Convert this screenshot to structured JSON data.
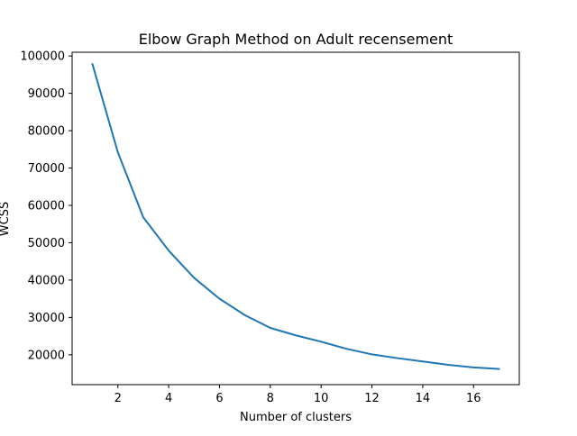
{
  "chart_data": {
    "type": "line",
    "title": "Elbow Graph Method on Adult recensement",
    "xlabel": "Number of clusters",
    "ylabel": "WCSS",
    "xlim": [
      0.2,
      17.8
    ],
    "ylim": [
      12000,
      101000
    ],
    "xticks": [
      2,
      4,
      6,
      8,
      10,
      12,
      14,
      16
    ],
    "yticks": [
      20000,
      30000,
      40000,
      50000,
      60000,
      70000,
      80000,
      90000,
      100000
    ],
    "grid": false,
    "series": [
      {
        "color": "#1f77b4",
        "x": [
          1,
          2,
          3,
          4,
          5,
          6,
          7,
          8,
          9,
          10,
          11,
          12,
          13,
          14,
          15,
          16,
          17
        ],
        "y": [
          97800,
          74200,
          56800,
          47900,
          40600,
          35000,
          30600,
          27200,
          25200,
          23500,
          21600,
          20100,
          19100,
          18200,
          17300,
          16600,
          16200
        ]
      }
    ]
  }
}
